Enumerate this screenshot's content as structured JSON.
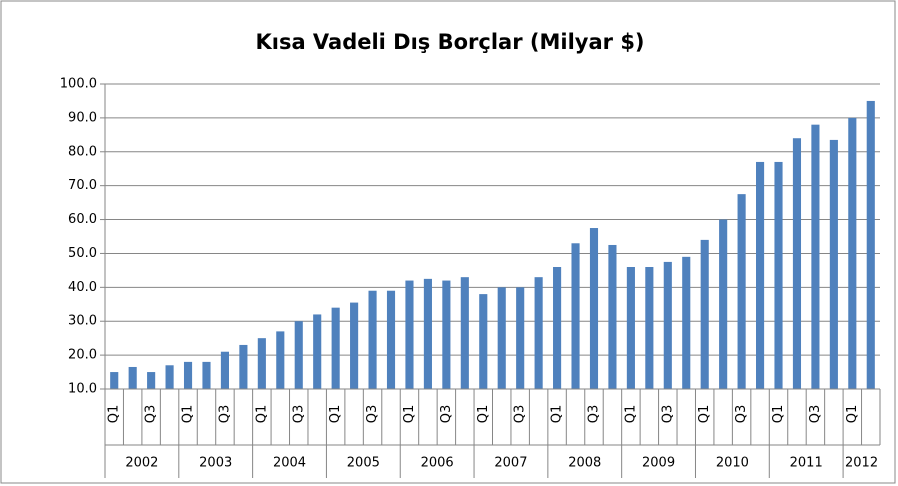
{
  "chart_data": {
    "type": "bar",
    "title": "Kısa Vadeli Dış Borçlar (Milyar $)",
    "categories": [
      "Q1",
      null,
      "Q3",
      null,
      "Q1",
      null,
      "Q3",
      null,
      "Q1",
      null,
      "Q3",
      null,
      "Q1",
      null,
      "Q3",
      null,
      "Q1",
      null,
      "Q3",
      null,
      "Q1",
      null,
      "Q3",
      null,
      "Q1",
      null,
      "Q3",
      null,
      "Q1",
      null,
      "Q3",
      null,
      "Q1",
      null,
      "Q3",
      null,
      "Q1",
      null,
      "Q3",
      null,
      "Q1",
      null
    ],
    "years": [
      "2002",
      "2003",
      "2004",
      "2005",
      "2006",
      "2007",
      "2008",
      "2009",
      "2010",
      "2011",
      "2012"
    ],
    "values": [
      15,
      16.5,
      15,
      17,
      18,
      18,
      21,
      23,
      25,
      27,
      30,
      32,
      34,
      35.5,
      39,
      39,
      42,
      42.5,
      42,
      43,
      38,
      40,
      40,
      43,
      46,
      53,
      57.5,
      52.5,
      46,
      46,
      47.5,
      49,
      54,
      60,
      67.5,
      77,
      77,
      84,
      88,
      83.5,
      90,
      95
    ],
    "color": "#4f81bd",
    "ylim": [
      10,
      100
    ],
    "yticks": [
      {
        "value": 10,
        "label": "10.0"
      },
      {
        "value": 20,
        "label": "20.0"
      },
      {
        "value": 30,
        "label": "30.0"
      },
      {
        "value": 40,
        "label": "40.0"
      },
      {
        "value": 50,
        "label": "50.0"
      },
      {
        "value": 60,
        "label": "60.0"
      },
      {
        "value": 70,
        "label": "70.0"
      },
      {
        "value": 80,
        "label": "80.0"
      },
      {
        "value": 90,
        "label": "90.0"
      },
      {
        "value": 100,
        "label": "100.0"
      }
    ],
    "grid": true
  }
}
